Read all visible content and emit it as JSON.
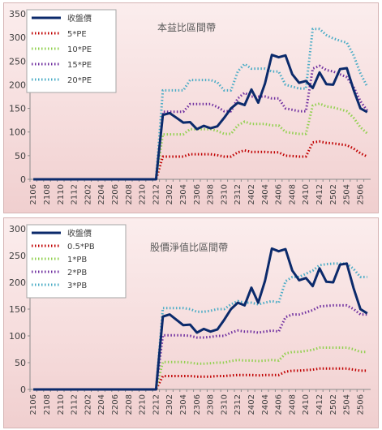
{
  "chart_data": [
    {
      "type": "line",
      "title": "本益比區間帶",
      "ylim": [
        0,
        350
      ],
      "yticks": [
        0,
        50,
        100,
        150,
        200,
        250,
        300,
        350
      ],
      "categories": [
        "2106",
        "2107",
        "2108",
        "2109",
        "2110",
        "2111",
        "2112",
        "2201",
        "2202",
        "2203",
        "2204",
        "2205",
        "2206",
        "2207",
        "2208",
        "2209",
        "2210",
        "2211",
        "2212",
        "2301",
        "2302",
        "2303",
        "2304",
        "2305",
        "2306",
        "2307",
        "2308",
        "2309",
        "2310",
        "2311",
        "2312",
        "2401",
        "2402",
        "2403",
        "2404",
        "2405",
        "2406",
        "2407",
        "2408",
        "2409",
        "2410",
        "2411",
        "2412",
        "2501",
        "2502",
        "2503",
        "2504",
        "2505",
        "2506",
        "2507"
      ],
      "xtick_labels": [
        "2106",
        "2108",
        "2110",
        "2112",
        "2202",
        "2204",
        "2206",
        "2208",
        "2210",
        "2212",
        "2302",
        "2304",
        "2306",
        "2308",
        "2310",
        "2312",
        "2402",
        "2404",
        "2406",
        "2408",
        "2410",
        "2412",
        "2502",
        "2504",
        "2506"
      ],
      "legend_position": "top-left",
      "series": [
        {
          "name": "收盤價",
          "color": "#0b2a6b",
          "style": "solid",
          "values": [
            0,
            0,
            0,
            0,
            0,
            0,
            0,
            0,
            0,
            0,
            0,
            0,
            0,
            0,
            0,
            0,
            0,
            0,
            0,
            136,
            140,
            130,
            120,
            121,
            106,
            113,
            108,
            112,
            130,
            150,
            162,
            157,
            190,
            162,
            203,
            263,
            258,
            262,
            222,
            204,
            208,
            193,
            226,
            201,
            200,
            233,
            235,
            189,
            150,
            142
          ]
        },
        {
          "name": "5*PE",
          "color": "#c00000",
          "style": "dotted",
          "values": [
            0,
            0,
            0,
            0,
            0,
            0,
            0,
            0,
            0,
            0,
            0,
            0,
            0,
            0,
            0,
            0,
            0,
            0,
            0,
            48,
            48,
            48,
            48,
            53,
            53,
            53,
            53,
            51,
            48,
            48,
            57,
            61,
            58,
            58,
            58,
            57,
            57,
            50,
            49,
            48,
            48,
            78,
            80,
            77,
            76,
            74,
            72,
            65,
            55,
            48
          ]
        },
        {
          "name": "10*PE",
          "color": "#92d050",
          "style": "dotted",
          "values": [
            0,
            0,
            0,
            0,
            0,
            0,
            0,
            0,
            0,
            0,
            0,
            0,
            0,
            0,
            0,
            0,
            0,
            0,
            0,
            95,
            95,
            95,
            95,
            106,
            106,
            106,
            106,
            102,
            96,
            96,
            114,
            122,
            117,
            117,
            117,
            114,
            114,
            100,
            98,
            96,
            96,
            156,
            160,
            154,
            152,
            148,
            144,
            130,
            110,
            97
          ]
        },
        {
          "name": "15*PE",
          "color": "#7030a0",
          "style": "dotted",
          "values": [
            0,
            0,
            0,
            0,
            0,
            0,
            0,
            0,
            0,
            0,
            0,
            0,
            0,
            0,
            0,
            0,
            0,
            0,
            0,
            143,
            143,
            143,
            143,
            159,
            159,
            159,
            159,
            153,
            144,
            144,
            171,
            183,
            175,
            175,
            175,
            171,
            171,
            150,
            147,
            144,
            144,
            234,
            240,
            231,
            228,
            222,
            216,
            195,
            165,
            145
          ]
        },
        {
          "name": "20*PE",
          "color": "#4bacc6",
          "style": "dotted",
          "values": [
            0,
            0,
            0,
            0,
            0,
            0,
            0,
            0,
            0,
            0,
            0,
            0,
            0,
            0,
            0,
            0,
            0,
            0,
            0,
            188,
            188,
            188,
            188,
            210,
            210,
            210,
            210,
            205,
            188,
            188,
            228,
            244,
            234,
            234,
            234,
            228,
            228,
            200,
            196,
            192,
            192,
            318,
            318,
            305,
            298,
            293,
            289,
            262,
            224,
            196
          ]
        }
      ]
    },
    {
      "type": "line",
      "title": "股價淨值比區間帶",
      "ylim": [
        0,
        300
      ],
      "yticks": [
        0,
        50,
        100,
        150,
        200,
        250,
        300
      ],
      "categories": [
        "2106",
        "2107",
        "2108",
        "2109",
        "2110",
        "2111",
        "2112",
        "2201",
        "2202",
        "2203",
        "2204",
        "2205",
        "2206",
        "2207",
        "2208",
        "2209",
        "2210",
        "2211",
        "2212",
        "2301",
        "2302",
        "2303",
        "2304",
        "2305",
        "2306",
        "2307",
        "2308",
        "2309",
        "2310",
        "2311",
        "2312",
        "2401",
        "2402",
        "2403",
        "2404",
        "2405",
        "2406",
        "2407",
        "2408",
        "2409",
        "2410",
        "2411",
        "2412",
        "2501",
        "2502",
        "2503",
        "2504",
        "2505",
        "2506",
        "2507"
      ],
      "xtick_labels": [
        "2106",
        "2108",
        "2110",
        "2112",
        "2202",
        "2204",
        "2206",
        "2208",
        "2210",
        "2212",
        "2302",
        "2304",
        "2306",
        "2308",
        "2310",
        "2312",
        "2402",
        "2404",
        "2406",
        "2408",
        "2410",
        "2412",
        "2502",
        "2504",
        "2506"
      ],
      "legend_position": "top-left",
      "series": [
        {
          "name": "收盤價",
          "color": "#0b2a6b",
          "style": "solid",
          "values": [
            0,
            0,
            0,
            0,
            0,
            0,
            0,
            0,
            0,
            0,
            0,
            0,
            0,
            0,
            0,
            0,
            0,
            0,
            0,
            136,
            140,
            130,
            120,
            121,
            106,
            113,
            108,
            112,
            130,
            150,
            162,
            157,
            190,
            162,
            203,
            263,
            258,
            262,
            222,
            204,
            208,
            193,
            226,
            201,
            200,
            233,
            235,
            189,
            150,
            142
          ]
        },
        {
          "name": "0.5*PB",
          "color": "#c00000",
          "style": "dotted",
          "values": [
            0,
            0,
            0,
            0,
            0,
            0,
            0,
            0,
            0,
            0,
            0,
            0,
            0,
            0,
            0,
            0,
            0,
            0,
            0,
            25,
            25,
            25,
            25,
            25,
            24,
            24,
            24,
            25,
            25,
            26,
            27,
            27,
            27,
            26,
            27,
            27,
            27,
            33,
            35,
            35,
            36,
            37,
            39,
            39,
            39,
            39,
            39,
            37,
            35,
            35
          ]
        },
        {
          "name": "1*PB",
          "color": "#92d050",
          "style": "dotted",
          "values": [
            0,
            0,
            0,
            0,
            0,
            0,
            0,
            0,
            0,
            0,
            0,
            0,
            0,
            0,
            0,
            0,
            0,
            0,
            0,
            51,
            51,
            51,
            51,
            50,
            48,
            48,
            49,
            50,
            50,
            53,
            55,
            54,
            54,
            53,
            54,
            55,
            54,
            67,
            70,
            70,
            72,
            74,
            78,
            78,
            78,
            78,
            78,
            75,
            70,
            70
          ]
        },
        {
          "name": "2*PB",
          "color": "#7030a0",
          "style": "dotted",
          "values": [
            0,
            0,
            0,
            0,
            0,
            0,
            0,
            0,
            0,
            0,
            0,
            0,
            0,
            0,
            0,
            0,
            0,
            0,
            0,
            101,
            101,
            101,
            101,
            100,
            97,
            97,
            98,
            100,
            100,
            106,
            110,
            108,
            108,
            106,
            108,
            110,
            108,
            135,
            140,
            140,
            144,
            148,
            155,
            156,
            157,
            157,
            157,
            150,
            140,
            140
          ]
        },
        {
          "name": "3*PB",
          "color": "#4bacc6",
          "style": "dotted",
          "values": [
            0,
            0,
            0,
            0,
            0,
            0,
            0,
            0,
            0,
            0,
            0,
            0,
            0,
            0,
            0,
            0,
            0,
            0,
            0,
            152,
            152,
            152,
            152,
            150,
            145,
            145,
            147,
            150,
            150,
            159,
            165,
            162,
            162,
            159,
            162,
            165,
            162,
            202,
            210,
            210,
            216,
            222,
            232,
            234,
            235,
            235,
            235,
            225,
            210,
            210
          ]
        }
      ]
    }
  ]
}
